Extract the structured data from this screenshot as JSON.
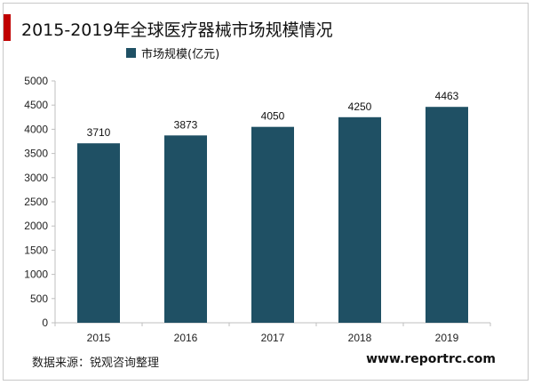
{
  "page": {
    "source_label": "数据来源：锐观咨询整理",
    "website": "www.reportrc.com",
    "accent_color": "#c00000"
  },
  "chart_data": {
    "type": "bar",
    "title": "2015-2019年全球医疗器械市场规模情况",
    "categories": [
      "2015",
      "2016",
      "2017",
      "2018",
      "2019"
    ],
    "series": [
      {
        "name": "市场规模(亿元)",
        "values": [
          3710,
          3873,
          4050,
          4250,
          4463
        ],
        "color": "#1f5064"
      }
    ],
    "ylim": [
      0,
      5000
    ],
    "yticks": [
      0,
      500,
      1000,
      1500,
      2000,
      2500,
      3000,
      3500,
      4000,
      4500,
      5000
    ],
    "xlabel": "",
    "ylabel": "",
    "grid": false,
    "legend": "top-left",
    "data_labels": true
  }
}
